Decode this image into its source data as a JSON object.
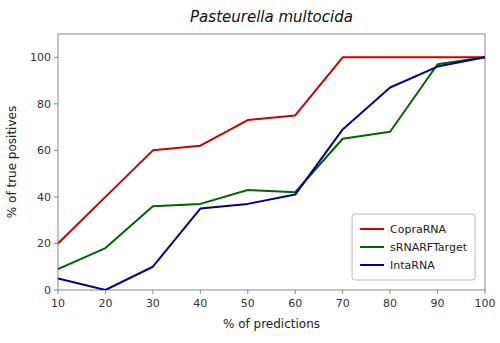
{
  "chart_data": {
    "type": "line",
    "title": "Pasteurella multocida",
    "x_label": "% of predictions",
    "y_label": "% of true positives",
    "x": [
      10,
      20,
      30,
      40,
      50,
      60,
      70,
      80,
      90,
      100
    ],
    "series": [
      {
        "name": "CopraRNA",
        "color": "#cc0000",
        "values": [
          20,
          40,
          60,
          62,
          73,
          75,
          100,
          100,
          100,
          100
        ]
      },
      {
        "name": "sRNARFTarget",
        "color": "#006400",
        "values": [
          9,
          18,
          36,
          37,
          43,
          42,
          65,
          68,
          97,
          100
        ]
      },
      {
        "name": "IntaRNA",
        "color": "#00008b",
        "values": [
          5,
          0,
          10,
          35,
          37,
          41,
          69,
          87,
          96,
          100
        ]
      }
    ],
    "xlim": [
      10,
      100
    ],
    "ylim": [
      0,
      110
    ],
    "xticks": [
      10,
      20,
      30,
      40,
      50,
      60,
      70,
      80,
      90,
      100
    ],
    "yticks": [
      0,
      20,
      40,
      60,
      80,
      100
    ],
    "grid": false,
    "legend": "lower right"
  }
}
